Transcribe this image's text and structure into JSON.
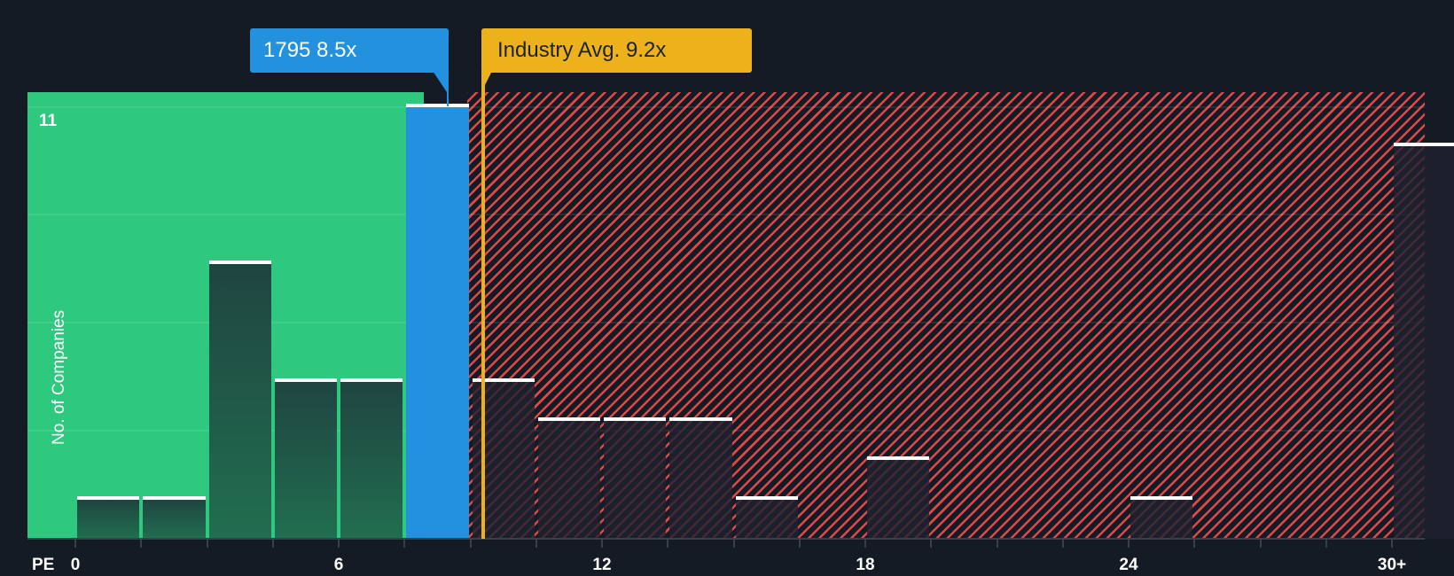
{
  "chart_data": {
    "type": "bar",
    "title": "",
    "xlabel": "PE",
    "ylabel": "No. of Companies",
    "ylim": [
      0,
      11
    ],
    "y_tick_labels": [
      "11"
    ],
    "x_tick_labels": [
      "0",
      "6",
      "12",
      "18",
      "24",
      "30+"
    ],
    "bin_width": 1.5,
    "categories": [
      "0-1.5",
      "1.5-3",
      "3-4.5",
      "4.5-6",
      "6-7.5",
      "7.5-9",
      "9-10.5",
      "10.5-12",
      "12-13.5",
      "13.5-15",
      "15-16.5",
      "16.5-18",
      "18-19.5",
      "19.5-21",
      "21-22.5",
      "22.5-24",
      "24-25.5",
      "25.5-27",
      "27-28.5",
      "28.5-30",
      "30+"
    ],
    "values": [
      1,
      1,
      7,
      4,
      4,
      11,
      4,
      3,
      3,
      3,
      1,
      0,
      2,
      0,
      0,
      0,
      1,
      0,
      0,
      0,
      10
    ],
    "subject": {
      "label": "1795 8.5x",
      "ticker": "1795",
      "pe": 8.5,
      "color": "#2391de"
    },
    "industry_avg": {
      "label": "Industry Avg. 9.2x",
      "pe": 9.2,
      "color": "#edb11b"
    },
    "zones": {
      "undervalued_color": "#2ec87f",
      "overvalued_color": "#e04848"
    },
    "grid": true,
    "legend": "none"
  },
  "labels": {
    "subject_callout": "1795 8.5x",
    "industry_callout": "Industry Avg. 9.2x",
    "y_axis": "No. of Companies",
    "y_max": "11",
    "x_axis_prefix": "PE",
    "x_ticks": [
      "0",
      "6",
      "12",
      "18",
      "24",
      "30+"
    ]
  }
}
